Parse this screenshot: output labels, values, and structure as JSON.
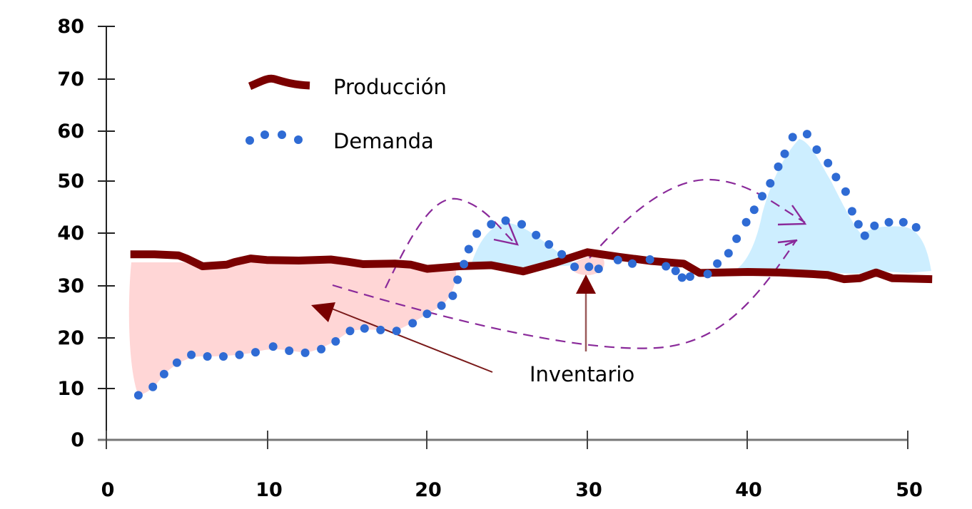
{
  "chart_data": {
    "type": "line",
    "title": "",
    "xlabel": "",
    "ylabel": "",
    "xlim": [
      0,
      50
    ],
    "ylim": [
      0,
      80
    ],
    "grid": false,
    "legend_position": "upper-left (inside plot)",
    "x_ticks": [
      "0",
      "10",
      "20",
      "30",
      "40",
      "50"
    ],
    "y_ticks": [
      "0",
      "10",
      "20",
      "30",
      "40",
      "50",
      "60",
      "70",
      "80"
    ],
    "series": [
      {
        "name": "Producción",
        "style": "thick solid line",
        "color": "#7a0000",
        "x": [
          1.5,
          3,
          4.5,
          5,
          6,
          7.5,
          8,
          9,
          10,
          12,
          13,
          14,
          15,
          16,
          18,
          19,
          20,
          22,
          24,
          26,
          28,
          30,
          32,
          34,
          36,
          37,
          40,
          42,
          44,
          45,
          46,
          47,
          48,
          49,
          51.5
        ],
        "values": [
          35.8,
          35.8,
          35.6,
          35,
          33.5,
          33.8,
          34.3,
          35,
          34.7,
          34.6,
          34.7,
          34.8,
          34.4,
          33.9,
          34.0,
          33.8,
          33.0,
          33.5,
          33.7,
          32.5,
          34.2,
          36.2,
          35.3,
          34.5,
          34.0,
          32.2,
          32.4,
          32.3,
          32.0,
          31.8,
          31.0,
          31.2,
          32.3,
          31.2,
          31.0
        ]
      },
      {
        "name": "Demanda",
        "style": "dotted line",
        "color": "#2f6bd4",
        "x": [
          2.0,
          2.9,
          3.6,
          4.4,
          5.3,
          6.3,
          7.3,
          8.3,
          9.3,
          10.4,
          11.4,
          12.4,
          13.4,
          14.3,
          15.2,
          16.1,
          17.1,
          18.1,
          19.1,
          20.0,
          20.9,
          21.6,
          21.9,
          22.3,
          22.6,
          23.1,
          24.0,
          24.9,
          25.9,
          26.8,
          27.6,
          28.4,
          29.2,
          30.1,
          30.7,
          31.9,
          32.8,
          33.9,
          34.9,
          35.5,
          35.9,
          36.4,
          37.5,
          38.1,
          38.8,
          39.3,
          39.9,
          40.4,
          40.9,
          41.4,
          41.9,
          42.3,
          42.8,
          43.7,
          44.3,
          45.0,
          45.5,
          46.1,
          46.5,
          46.9,
          47.3,
          47.9,
          48.8,
          49.7,
          50.5
        ],
        "values": [
          8.6,
          10.2,
          12.7,
          14.9,
          16.4,
          16.1,
          16.1,
          16.4,
          16.9,
          18.0,
          17.2,
          16.8,
          17.5,
          19.0,
          21.0,
          21.5,
          21.2,
          21.0,
          22.5,
          24.3,
          25.9,
          27.8,
          30.9,
          33.9,
          36.8,
          39.8,
          41.6,
          42.3,
          41.6,
          39.5,
          37.7,
          35.8,
          33.4,
          33.4,
          33.0,
          34.7,
          34.0,
          34.8,
          33.5,
          32.6,
          31.3,
          31.5,
          32.0,
          34.0,
          36.0,
          38.8,
          42.0,
          44.4,
          47.0,
          49.5,
          52.7,
          55.2,
          58.4,
          59.0,
          56.0,
          53.4,
          50.7,
          47.9,
          44.1,
          41.6,
          39.4,
          41.3,
          42.0,
          42.0,
          41.0
        ]
      }
    ],
    "filled_regions": [
      {
        "label": "Inventario (excess production)",
        "color": "#ffd6d6",
        "x_range": [
          1.5,
          22
        ]
      },
      {
        "label": "Inventario (small)",
        "color": "#ffd6d6",
        "x_range": [
          29,
          31
        ]
      },
      {
        "label": "Demand excess",
        "color": "#cdeeff",
        "x_range": [
          22.5,
          29
        ]
      },
      {
        "label": "Demand excess",
        "color": "#cdeeff",
        "x_range": [
          39,
          51.5
        ]
      }
    ],
    "annotations": [
      {
        "text": "Inventario",
        "x": 34,
        "y": 13
      }
    ]
  },
  "legend": {
    "items": [
      {
        "label": "Producción",
        "color": "#7a0000"
      },
      {
        "label": "Demanda",
        "color": "#2f6bd4"
      }
    ]
  },
  "annotation": {
    "label": "Inventario"
  },
  "colors": {
    "production": "#7a0000",
    "demand": "#2f6bd4",
    "inventory_fill": "#ffd6d6",
    "deficit_fill": "#cdeeff",
    "dashed_arrow": "#8a2a9a",
    "axis": "#333333"
  }
}
